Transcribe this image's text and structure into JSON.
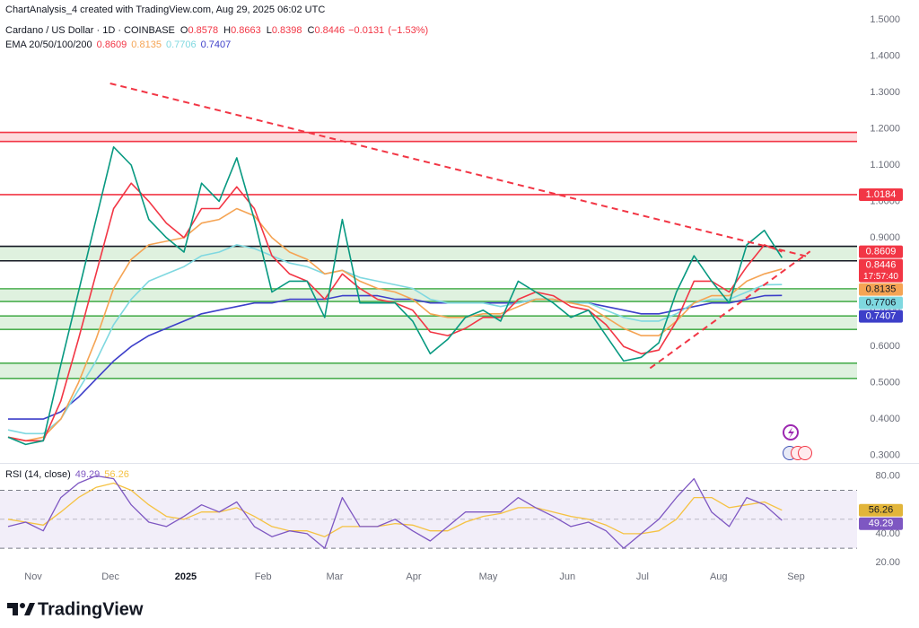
{
  "header": {
    "credit": "ChartAnalysis_4 created with TradingView.com, Aug 29, 2025 06:02 UTC",
    "symbol": "Cardano / US Dollar · 1D · COINBASE",
    "ohlc": [
      {
        "label": "O",
        "value": 0.8578
      },
      {
        "label": "H",
        "value": 0.8663
      },
      {
        "label": "L",
        "value": 0.8398
      },
      {
        "label": "C",
        "value": 0.8446
      }
    ],
    "change": {
      "value": -0.0131,
      "label": "−0.0131"
    },
    "change_pct": {
      "value": -1.53,
      "label": "(−1.53%)"
    }
  },
  "chart_data": [
    {
      "type": "line",
      "indicator_label": "EMA 20/50/100/200",
      "xlim": [
        -0.46,
        48.27
      ],
      "xticks": [
        {
          "value": 1.43,
          "label": "Nov"
        },
        {
          "value": 5.82,
          "label": "Dec"
        },
        {
          "value": 10.1,
          "label": "2025"
        },
        {
          "value": 14.5,
          "label": "Feb"
        },
        {
          "value": 18.57,
          "label": "Mar"
        },
        {
          "value": 23.06,
          "label": "Apr"
        },
        {
          "value": 27.3,
          "label": "May"
        },
        {
          "value": 31.8,
          "label": "Jun"
        },
        {
          "value": 36.07,
          "label": "Jul"
        },
        {
          "value": 40.4,
          "label": "Aug"
        },
        {
          "value": 44.8,
          "label": "Sep"
        }
      ],
      "ylim": [
        0.2815,
        1.5549
      ],
      "yticks": [
        {
          "value": 0.3,
          "label": "0.3000"
        },
        {
          "value": 0.4,
          "label": "0.4000"
        },
        {
          "value": 0.5,
          "label": "0.5000"
        },
        {
          "value": 0.6,
          "label": "0.6000"
        },
        {
          "value": 0.7,
          "label": "0.7000"
        },
        {
          "value": 0.8,
          "label": "0.8000"
        },
        {
          "value": 0.9,
          "label": "0.9000"
        },
        {
          "value": 1.0,
          "label": "1.0000"
        },
        {
          "value": 1.1,
          "label": "1.1000"
        },
        {
          "value": 1.2,
          "label": "1.2000"
        },
        {
          "value": 1.3,
          "label": "1.3000"
        },
        {
          "value": 1.4,
          "label": "1.4000"
        },
        {
          "value": 1.5,
          "label": "1.5000"
        }
      ],
      "grid": false,
      "series": [
        {
          "color": "#089981",
          "label_color": "#f23645",
          "values": [
            0.35,
            0.33,
            0.34,
            0.55,
            0.75,
            0.95,
            1.15,
            1.1,
            0.95,
            0.9,
            0.86,
            1.05,
            1.0,
            1.12,
            0.95,
            0.75,
            0.78,
            0.78,
            0.68,
            0.95,
            0.72,
            0.72,
            0.72,
            0.67,
            0.58,
            0.62,
            0.68,
            0.7,
            0.67,
            0.78,
            0.75,
            0.72,
            0.68,
            0.7,
            0.63,
            0.56,
            0.57,
            0.61,
            0.75,
            0.85,
            0.78,
            0.72,
            0.88,
            0.92,
            0.8446
          ]
        },
        {
          "color": "#f23645",
          "values": [
            0.35,
            0.34,
            0.34,
            0.45,
            0.62,
            0.8,
            0.98,
            1.05,
            1.0,
            0.94,
            0.9,
            0.98,
            0.98,
            1.04,
            0.98,
            0.85,
            0.8,
            0.78,
            0.73,
            0.8,
            0.76,
            0.73,
            0.72,
            0.7,
            0.64,
            0.63,
            0.65,
            0.68,
            0.68,
            0.73,
            0.75,
            0.74,
            0.71,
            0.7,
            0.66,
            0.6,
            0.58,
            0.59,
            0.67,
            0.78,
            0.78,
            0.75,
            0.82,
            0.88,
            0.8609
          ]
        },
        {
          "color": "#f5a454",
          "values": [
            0.35,
            0.34,
            0.35,
            0.4,
            0.5,
            0.62,
            0.76,
            0.84,
            0.88,
            0.89,
            0.9,
            0.94,
            0.95,
            0.98,
            0.96,
            0.9,
            0.86,
            0.84,
            0.8,
            0.81,
            0.78,
            0.76,
            0.75,
            0.73,
            0.69,
            0.68,
            0.68,
            0.69,
            0.69,
            0.71,
            0.73,
            0.73,
            0.72,
            0.71,
            0.68,
            0.65,
            0.63,
            0.63,
            0.67,
            0.72,
            0.74,
            0.74,
            0.78,
            0.8,
            0.8135
          ]
        },
        {
          "color": "#7fd8e0",
          "values": [
            0.37,
            0.36,
            0.36,
            0.4,
            0.48,
            0.56,
            0.66,
            0.73,
            0.78,
            0.8,
            0.82,
            0.85,
            0.86,
            0.88,
            0.87,
            0.85,
            0.83,
            0.82,
            0.8,
            0.81,
            0.79,
            0.78,
            0.77,
            0.76,
            0.73,
            0.72,
            0.72,
            0.72,
            0.71,
            0.72,
            0.73,
            0.73,
            0.72,
            0.72,
            0.7,
            0.68,
            0.67,
            0.67,
            0.69,
            0.72,
            0.73,
            0.73,
            0.75,
            0.77,
            0.7706
          ]
        },
        {
          "color": "#3d3fc9",
          "values": [
            0.4,
            0.4,
            0.4,
            0.42,
            0.46,
            0.51,
            0.56,
            0.6,
            0.63,
            0.65,
            0.67,
            0.69,
            0.7,
            0.71,
            0.72,
            0.72,
            0.73,
            0.73,
            0.73,
            0.74,
            0.74,
            0.74,
            0.73,
            0.73,
            0.72,
            0.72,
            0.72,
            0.72,
            0.72,
            0.72,
            0.73,
            0.73,
            0.72,
            0.72,
            0.71,
            0.7,
            0.69,
            0.69,
            0.7,
            0.71,
            0.72,
            0.72,
            0.73,
            0.74,
            0.7407
          ]
        }
      ],
      "countdown": "17:57:40",
      "levels": [
        {
          "value": 1.0184,
          "color": "#f23645"
        }
      ],
      "zones": [
        {
          "from": 1.165,
          "to": 1.19,
          "color": "#f23645",
          "fill": "#f23645"
        },
        {
          "from": 0.836,
          "to": 0.876,
          "color": "#131722",
          "fill": "#4caf50"
        },
        {
          "from": 0.724,
          "to": 0.759,
          "color": "#4caf50",
          "fill": "#4caf50"
        },
        {
          "from": 0.647,
          "to": 0.684,
          "color": "#4caf50",
          "fill": "#4caf50"
        },
        {
          "from": 0.512,
          "to": 0.554,
          "color": "#4caf50",
          "fill": "#4caf50"
        }
      ],
      "trendlines": [
        {
          "x": [
            5.8,
            45.6
          ],
          "y": [
            1.325,
            0.846
          ],
          "color": "#f23645"
        },
        {
          "x": [
            36.5,
            45.6
          ],
          "y": [
            0.54,
            0.862
          ],
          "color": "#f23645"
        }
      ]
    },
    {
      "type": "line",
      "indicator_label": "RSI (14, close)",
      "xlim": [
        -0.46,
        48.27
      ],
      "ylim": [
        16.4,
        87.7
      ],
      "yticks": [
        {
          "value": 20,
          "label": "20.00"
        },
        {
          "value": 40,
          "label": "40.00"
        },
        {
          "value": 80,
          "label": "80.00"
        }
      ],
      "bands": [
        30,
        70
      ],
      "midline": 50,
      "series": [
        {
          "color": "#7e57c2",
          "label_color": "#7e57c2",
          "values": [
            45,
            48,
            42,
            65,
            75,
            80,
            78,
            60,
            48,
            45,
            52,
            60,
            55,
            62,
            45,
            38,
            42,
            40,
            30,
            65,
            45,
            45,
            50,
            42,
            35,
            45,
            55,
            55,
            55,
            65,
            58,
            52,
            45,
            48,
            42,
            30,
            40,
            50,
            65,
            78,
            55,
            45,
            65,
            60,
            49.29
          ]
        },
        {
          "color": "#f5c242",
          "label_color": "#e2b53a",
          "values": [
            50,
            48,
            46,
            55,
            65,
            72,
            75,
            70,
            60,
            52,
            50,
            55,
            55,
            58,
            52,
            45,
            42,
            42,
            38,
            45,
            45,
            45,
            47,
            46,
            42,
            42,
            48,
            52,
            54,
            58,
            58,
            55,
            52,
            50,
            46,
            40,
            40,
            42,
            50,
            65,
            65,
            58,
            60,
            62,
            56.26
          ]
        }
      ]
    }
  ],
  "logo": "TradingView"
}
